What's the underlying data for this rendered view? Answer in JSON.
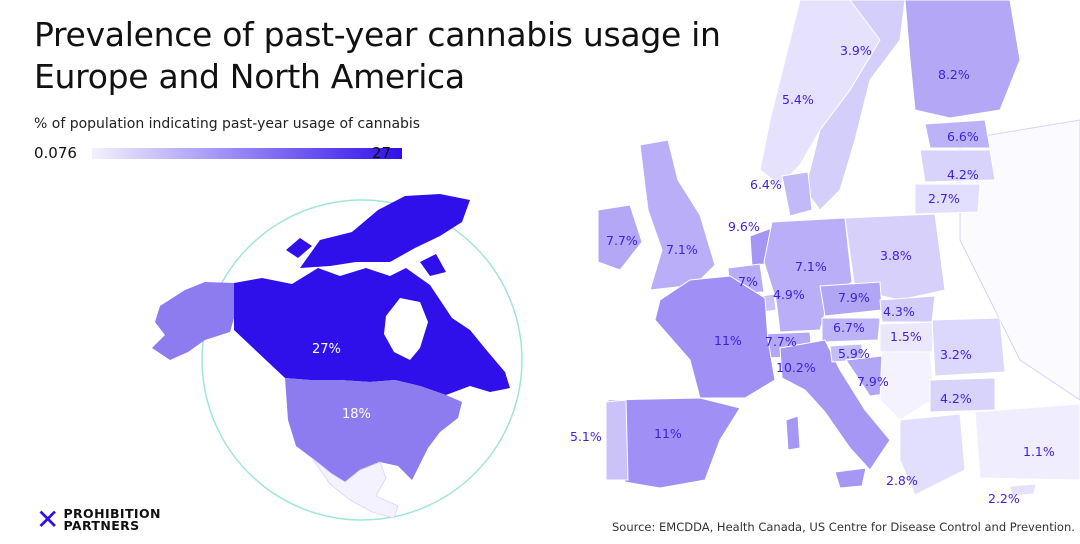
{
  "title": "Prevalence of past-year cannabis usage in Europe and North America",
  "subtitle": "% of population indicating past-year usage of cannabis",
  "legend": {
    "min": "0.076",
    "max": "27",
    "color_min": "#f3f1ff",
    "color_max": "#2f10ea"
  },
  "north_america": [
    {
      "region": "Canada",
      "label": "27%",
      "value": 27
    },
    {
      "region": "USA",
      "label": "18%",
      "value": 18
    }
  ],
  "europe": [
    {
      "region": "Norway",
      "label": "3.9%",
      "value": 3.9
    },
    {
      "region": "Finland",
      "label": "8.2%",
      "value": 8.2
    },
    {
      "region": "Sweden",
      "label": "5.4%",
      "value": 5.4
    },
    {
      "region": "Estonia",
      "label": "6.6%",
      "value": 6.6
    },
    {
      "region": "Latvia",
      "label": "4.2%",
      "value": 4.2
    },
    {
      "region": "Denmark",
      "label": "6.4%",
      "value": 6.4
    },
    {
      "region": "Lithuania",
      "label": "2.7%",
      "value": 2.7
    },
    {
      "region": "Ireland",
      "label": "7.7%",
      "value": 7.7
    },
    {
      "region": "United Kingdom",
      "label": "7.1%",
      "value": 7.1
    },
    {
      "region": "Netherlands",
      "label": "9.6%",
      "value": 9.6
    },
    {
      "region": "Germany",
      "label": "7.1%",
      "value": 7.1
    },
    {
      "region": "Poland",
      "label": "3.8%",
      "value": 3.8
    },
    {
      "region": "Belgium",
      "label": "7%",
      "value": 7
    },
    {
      "region": "Luxembourg",
      "label": "4.9%",
      "value": 4.9
    },
    {
      "region": "Czechia",
      "label": "7.9%",
      "value": 7.9
    },
    {
      "region": "Slovakia",
      "label": "4.3%",
      "value": 4.3
    },
    {
      "region": "France",
      "label": "11%",
      "value": 11
    },
    {
      "region": "Switzerland",
      "label": "7.7%",
      "value": 7.7
    },
    {
      "region": "Austria",
      "label": "6.7%",
      "value": 6.7
    },
    {
      "region": "Hungary",
      "label": "1.5%",
      "value": 1.5
    },
    {
      "region": "Romania",
      "label": "3.2%",
      "value": 3.2
    },
    {
      "region": "Italy",
      "label": "10.2%",
      "value": 10.2
    },
    {
      "region": "Slovenia",
      "label": "5.9%",
      "value": 5.9
    },
    {
      "region": "Croatia",
      "label": "7.9%",
      "value": 7.9
    },
    {
      "region": "Bulgaria",
      "label": "4.2%",
      "value": 4.2
    },
    {
      "region": "Portugal",
      "label": "5.1%",
      "value": 5.1
    },
    {
      "region": "Spain",
      "label": "11%",
      "value": 11
    },
    {
      "region": "Turkey",
      "label": "1.1%",
      "value": 1.1
    },
    {
      "region": "Greece",
      "label": "2.8%",
      "value": 2.8
    },
    {
      "region": "Cyprus",
      "label": "2.2%",
      "value": 2.2
    }
  ],
  "logo": {
    "line1": "PROHIBITION",
    "line2": "PARTNERS"
  },
  "source": "Source: EMCDDA, Health Canada, US Centre for Disease Control and Prevention."
}
